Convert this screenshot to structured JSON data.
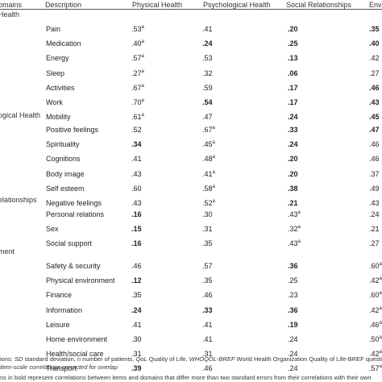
{
  "header": {
    "domains": "omains",
    "description": "Description",
    "physical": "Physical Health",
    "psychological": "Psychological Health",
    "social": "Social Relationships",
    "env": "Env"
  },
  "sections": [
    {
      "label": "Health",
      "rows": [
        {
          "desc": "Pain",
          "phys": ".53",
          "phys_sup": "a",
          "phys_bold": false,
          "psych": ".41",
          "psych_sup": "",
          "psych_bold": false,
          "soc": ".20",
          "soc_sup": "",
          "soc_bold": true,
          "env": ".35",
          "env_sup": "",
          "env_bold": true
        },
        {
          "desc": "Medication",
          "phys": ".40",
          "phys_sup": "a",
          "phys_bold": false,
          "psych": ".24",
          "psych_sup": "",
          "psych_bold": true,
          "soc": ".25",
          "soc_sup": "",
          "soc_bold": true,
          "env": ".40",
          "env_sup": "",
          "env_bold": true
        },
        {
          "desc": "Energy",
          "phys": ".57",
          "phys_sup": "a",
          "phys_bold": false,
          "psych": ".53",
          "psych_sup": "",
          "psych_bold": false,
          "soc": ".13",
          "soc_sup": "",
          "soc_bold": true,
          "env": ".42",
          "env_sup": "",
          "env_bold": false
        },
        {
          "desc": "Sleep",
          "phys": ".27",
          "phys_sup": "a",
          "phys_bold": false,
          "psych": ".32",
          "psych_sup": "",
          "psych_bold": false,
          "soc": ".06",
          "soc_sup": "",
          "soc_bold": true,
          "env": ".27",
          "env_sup": "",
          "env_bold": false
        },
        {
          "desc": "Activities",
          "phys": ".67",
          "phys_sup": "a",
          "phys_bold": false,
          "psych": ".59",
          "psych_sup": "",
          "psych_bold": false,
          "soc": ".17",
          "soc_sup": "",
          "soc_bold": true,
          "env": ".46",
          "env_sup": "",
          "env_bold": true
        },
        {
          "desc": "Work",
          "phys": ".70",
          "phys_sup": "a",
          "phys_bold": false,
          "psych": ".54",
          "psych_sup": "",
          "psych_bold": true,
          "soc": ".17",
          "soc_sup": "",
          "soc_bold": true,
          "env": ".43",
          "env_sup": "",
          "env_bold": true
        },
        {
          "desc": "Mobility",
          "phys": ".61",
          "phys_sup": "a",
          "phys_bold": false,
          "psych": ".47",
          "psych_sup": "",
          "psych_bold": false,
          "soc": ".24",
          "soc_sup": "",
          "soc_bold": true,
          "env": ".45",
          "env_sup": "",
          "env_bold": true
        }
      ]
    },
    {
      "label": "ogical Health",
      "rows": [
        {
          "desc": "Positive feelings",
          "phys": ".52",
          "phys_sup": "",
          "phys_bold": false,
          "psych": ".67",
          "psych_sup": "a",
          "psych_bold": false,
          "soc": ".33",
          "soc_sup": "",
          "soc_bold": true,
          "env": ".47",
          "env_sup": "",
          "env_bold": true
        },
        {
          "desc": "Spirituality",
          "phys": ".34",
          "phys_sup": "",
          "phys_bold": true,
          "psych": ".45",
          "psych_sup": "a",
          "psych_bold": false,
          "soc": ".24",
          "soc_sup": "",
          "soc_bold": true,
          "env": ".46",
          "env_sup": "",
          "env_bold": false
        },
        {
          "desc": "Cognitions",
          "phys": ".41",
          "phys_sup": "",
          "phys_bold": false,
          "psych": ".48",
          "psych_sup": "a",
          "psych_bold": false,
          "soc": ".20",
          "soc_sup": "",
          "soc_bold": true,
          "env": ".46",
          "env_sup": "",
          "env_bold": false
        },
        {
          "desc": "Body image",
          "phys": ".43",
          "phys_sup": "",
          "phys_bold": false,
          "psych": ".41",
          "psych_sup": "a",
          "psych_bold": false,
          "soc": ".20",
          "soc_sup": "",
          "soc_bold": true,
          "env": ".37",
          "env_sup": "",
          "env_bold": false
        },
        {
          "desc": "Self esteem",
          "phys": ".60",
          "phys_sup": "",
          "phys_bold": false,
          "psych": ".58",
          "psych_sup": "a",
          "psych_bold": false,
          "soc": ".38",
          "soc_sup": "",
          "soc_bold": true,
          "env": ".49",
          "env_sup": "",
          "env_bold": false
        },
        {
          "desc": "Negative feelings",
          "phys": ".43",
          "phys_sup": "",
          "phys_bold": false,
          "psych": ".52",
          "psych_sup": "a",
          "psych_bold": false,
          "soc": ".21",
          "soc_sup": "",
          "soc_bold": true,
          "env": ".43",
          "env_sup": "",
          "env_bold": false
        }
      ]
    },
    {
      "label": "elationships",
      "rows": [
        {
          "desc": "Personal relations",
          "phys": ".16",
          "phys_sup": "",
          "phys_bold": true,
          "psych": ".30",
          "psych_sup": "",
          "psych_bold": false,
          "soc": ".43",
          "soc_sup": "a",
          "soc_bold": false,
          "env": ".24",
          "env_sup": "",
          "env_bold": false
        },
        {
          "desc": "Sex",
          "phys": ".15",
          "phys_sup": "",
          "phys_bold": true,
          "psych": ".31",
          "psych_sup": "",
          "psych_bold": false,
          "soc": ".32",
          "soc_sup": "a",
          "soc_bold": false,
          "env": ".21",
          "env_sup": "",
          "env_bold": false
        },
        {
          "desc": "Social support",
          "phys": ".16",
          "phys_sup": "",
          "phys_bold": true,
          "psych": ".35",
          "psych_sup": "",
          "psych_bold": false,
          "soc": ".43",
          "soc_sup": "a",
          "soc_bold": false,
          "env": ".27",
          "env_sup": "",
          "env_bold": false
        }
      ]
    },
    {
      "label": "ment",
      "rows": [
        {
          "desc": "Safety & security",
          "phys": ".46",
          "phys_sup": "",
          "phys_bold": false,
          "psych": ".57",
          "psych_sup": "",
          "psych_bold": false,
          "soc": ".36",
          "soc_sup": "",
          "soc_bold": true,
          "env": ".60",
          "env_sup": "a",
          "env_bold": false
        },
        {
          "desc": "Physical environment",
          "phys": ".12",
          "phys_sup": "",
          "phys_bold": true,
          "psych": ".35",
          "psych_sup": "",
          "psych_bold": false,
          "soc": ".25",
          "soc_sup": "",
          "soc_bold": false,
          "env": ".42",
          "env_sup": "a",
          "env_bold": false
        },
        {
          "desc": "Finance",
          "phys": ".35",
          "phys_sup": "",
          "phys_bold": false,
          "psych": ".46",
          "psych_sup": "",
          "psych_bold": false,
          "soc": ".23",
          "soc_sup": "",
          "soc_bold": false,
          "env": ".60",
          "env_sup": "a",
          "env_bold": false
        },
        {
          "desc": "Information",
          "phys": ".24",
          "phys_sup": "",
          "phys_bold": true,
          "psych": ".33",
          "psych_sup": "",
          "psych_bold": true,
          "soc": ".36",
          "soc_sup": "",
          "soc_bold": true,
          "env": ".42",
          "env_sup": "a",
          "env_bold": false
        },
        {
          "desc": "Leisure",
          "phys": ".41",
          "phys_sup": "",
          "phys_bold": false,
          "psych": ".41",
          "psych_sup": "",
          "psych_bold": false,
          "soc": ".19",
          "soc_sup": "",
          "soc_bold": true,
          "env": ".46",
          "env_sup": "a",
          "env_bold": false
        },
        {
          "desc": "Home environment",
          "phys": ".30",
          "phys_sup": "",
          "phys_bold": false,
          "psych": ".41",
          "psych_sup": "",
          "psych_bold": false,
          "soc": ".24",
          "soc_sup": "",
          "soc_bold": false,
          "env": ".50",
          "env_sup": "a",
          "env_bold": false
        },
        {
          "desc": "Health/social care",
          "phys": ".31",
          "phys_sup": "",
          "phys_bold": false,
          "psych": ".31",
          "psych_sup": "",
          "psych_bold": false,
          "soc": ".24",
          "soc_sup": "",
          "soc_bold": false,
          "env": ".42",
          "env_sup": "a",
          "env_bold": false
        },
        {
          "desc": "Transport",
          "phys": ".39",
          "phys_sup": "",
          "phys_bold": true,
          "psych": ".46",
          "psych_sup": "",
          "psych_bold": false,
          "soc": ".24",
          "soc_sup": "",
          "soc_bold": false,
          "env": ".57",
          "env_sup": "a",
          "env_bold": false
        }
      ]
    }
  ],
  "footnotes": {
    "line1_parts": [
      {
        "text": "ions: ",
        "italic": false
      },
      {
        "text": "SD",
        "italic": true
      },
      {
        "text": " standard deviation, ",
        "italic": false
      },
      {
        "text": "n",
        "italic": true
      },
      {
        "text": " number of patients, ",
        "italic": false
      },
      {
        "text": "QoL",
        "italic": true
      },
      {
        "text": " Quality of Life, ",
        "italic": false
      },
      {
        "text": "WHOQOL-BREF",
        "italic": true
      },
      {
        "text": " World Health Organization Quality of Life-BREF questionna",
        "italic": false
      }
    ],
    "line2": "item-scale correlations corrected for overlap",
    "line3": "ns in bold represent correlations between items and domains that differ more than two standard errors from their correlations with their own"
  }
}
